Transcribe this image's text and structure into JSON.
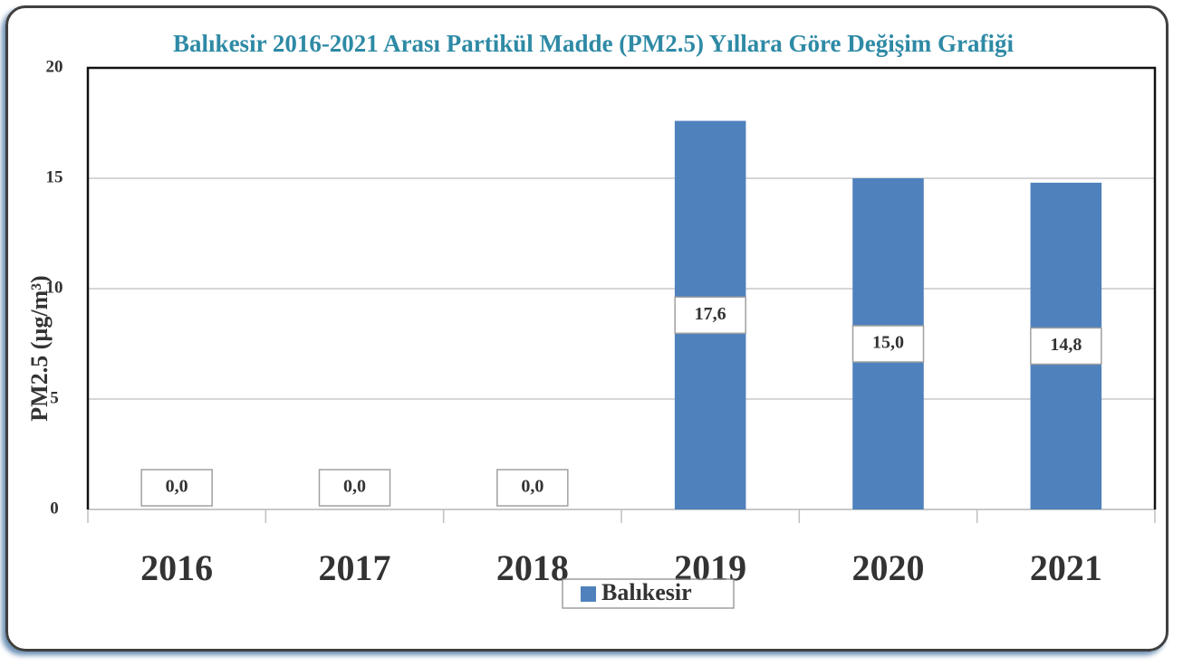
{
  "chart_data": {
    "type": "bar",
    "title": "Balıkesir 2016-2021 Arası Partikül Madde (PM2.5) Yıllara Göre Değişim Grafiği",
    "y_label": "PM2.5 (µg/m³)",
    "categories": [
      "2016",
      "2017",
      "2018",
      "2019",
      "2020",
      "2021"
    ],
    "series": [
      {
        "name": "Balıkesir",
        "color": "#4f81bd",
        "values": [
          0,
          0,
          0,
          17.6,
          15.0,
          14.8
        ],
        "value_labels": [
          "0,0",
          "0,0",
          "0,0",
          "17,6",
          "15,0",
          "14,8"
        ]
      }
    ],
    "ylim": [
      0,
      20
    ],
    "yticks": [
      0,
      5,
      10,
      15,
      20
    ],
    "grid": true
  }
}
